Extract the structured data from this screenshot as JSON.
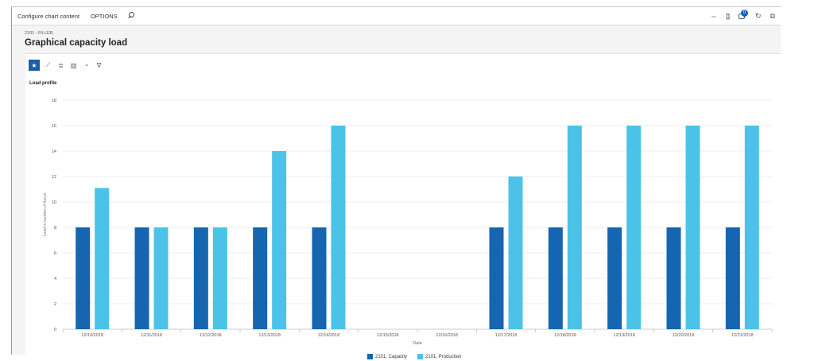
{
  "actionbar": {
    "configure_label": "Configure chart content",
    "options_label": "OPTIONS",
    "notification_count": "0"
  },
  "page": {
    "breadcrumb": "2101 : FILLER",
    "title": "Graphical capacity load"
  },
  "chart_toolbar": {
    "buttons": [
      "star-icon",
      "line-chart-icon",
      "bar-chart-icon",
      "column-chart-icon",
      "pie-chart-icon",
      "filter-icon"
    ]
  },
  "chart_data": {
    "type": "bar",
    "title": "Load profile",
    "xlabel": "Date",
    "ylabel": "Load in number of hours",
    "ylim": [
      0,
      18
    ],
    "yticks": [
      0,
      2,
      4,
      6,
      8,
      10,
      12,
      14,
      16,
      18
    ],
    "grid": true,
    "legend_position": "bottom",
    "categories": [
      "12/10/2018",
      "12/11/2018",
      "12/12/2018",
      "12/13/2018",
      "12/14/2018",
      "12/15/2018",
      "12/16/2018",
      "12/17/2018",
      "12/18/2018",
      "12/19/2018",
      "12/20/2018",
      "12/21/2018"
    ],
    "series": [
      {
        "name": "2101, Capacity",
        "color": "#1565b0",
        "values": [
          8,
          8,
          8,
          8,
          8,
          0,
          0,
          8,
          8,
          8,
          8,
          8
        ]
      },
      {
        "name": "2101, Production",
        "color": "#4bc3e8",
        "values": [
          11.1,
          8,
          8,
          14,
          16,
          0,
          0,
          12,
          16,
          16,
          16,
          16
        ]
      }
    ]
  }
}
